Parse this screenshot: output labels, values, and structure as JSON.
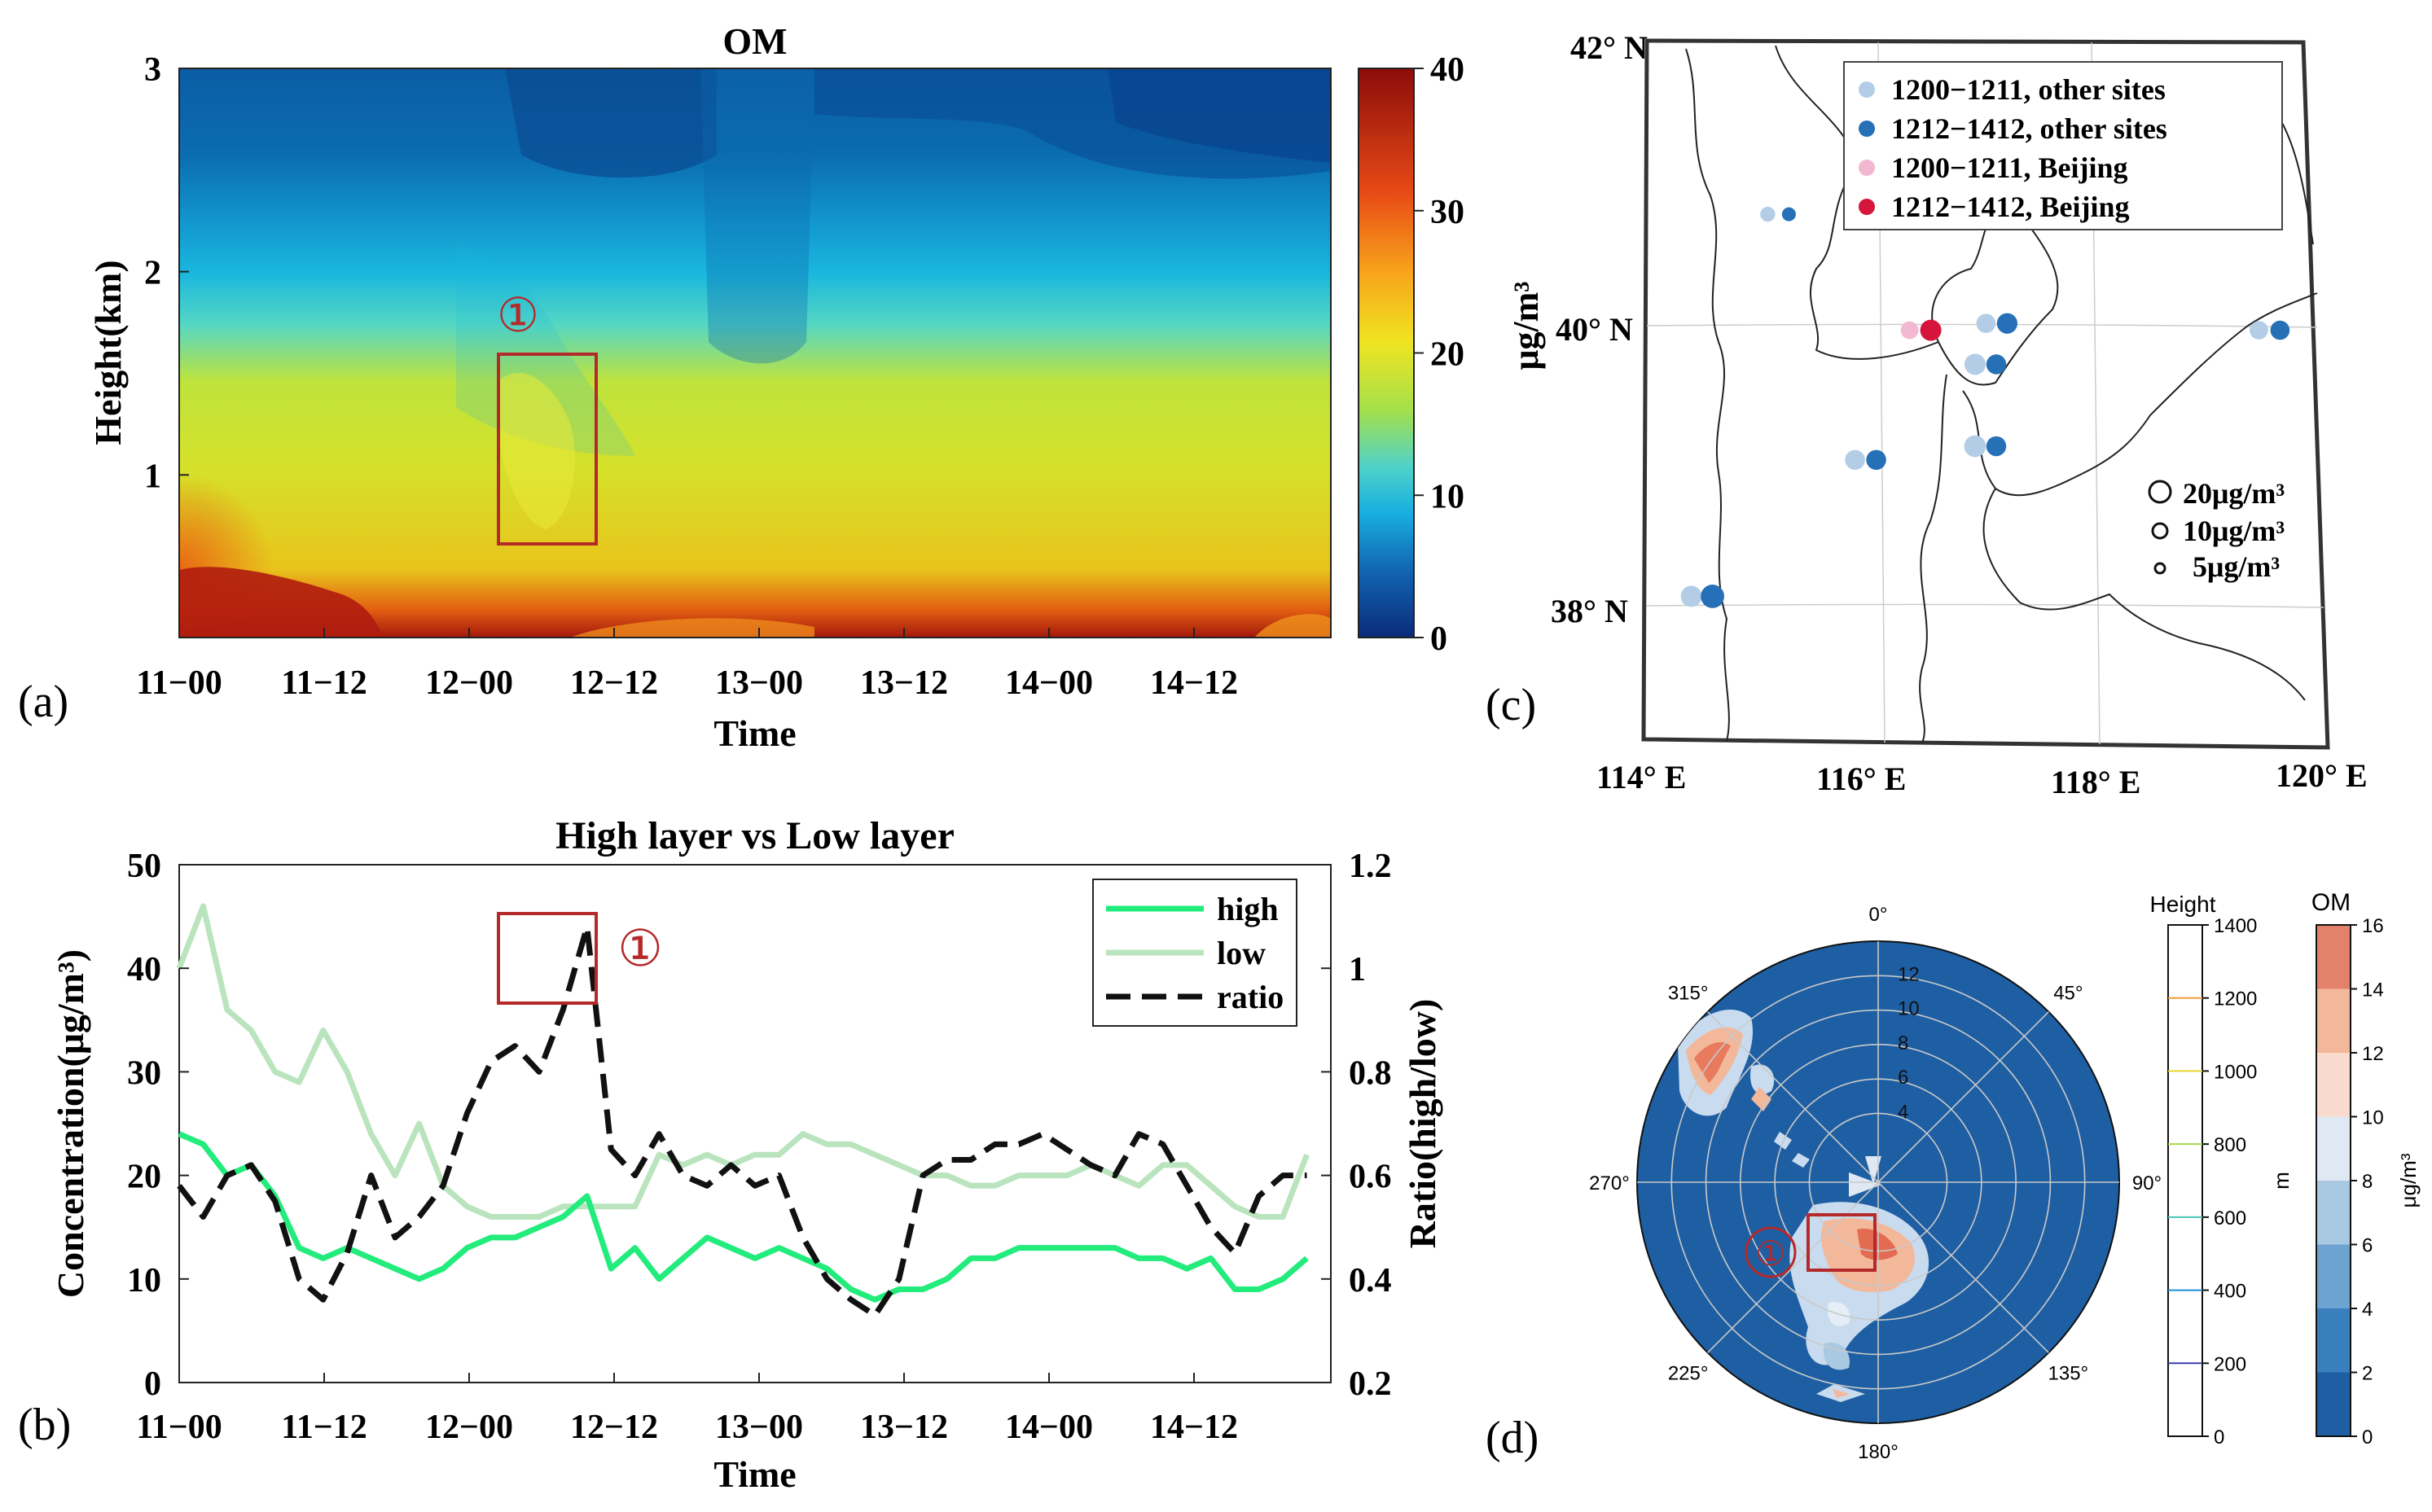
{
  "colors": {
    "high": "#21ec7c",
    "low": "#b9e4bd",
    "ratio": "#111111",
    "marker": "#b42a2a",
    "other_light": "#b3cde6",
    "other_dark": "#2670b7",
    "bj_light": "#f2b8d1",
    "bj_dark": "#d6153c",
    "polar_bg": "#1e5fa3"
  },
  "panels": {
    "a": {
      "letter": "(a)",
      "marker": "①"
    },
    "b": {
      "letter": "(b)",
      "marker": "①"
    },
    "c": {
      "letter": "(c)"
    },
    "d": {
      "letter": "(d)",
      "marker": "①"
    }
  },
  "chart_data": [
    {
      "type": "heatmap",
      "panel": "a",
      "title": "OM",
      "xlabel": "Time",
      "ylabel": "Height(km)",
      "x_ticks": [
        "11−00",
        "11−12",
        "12−00",
        "12−12",
        "13−00",
        "13−12",
        "14−00",
        "14−12"
      ],
      "y_ticks": [
        "1",
        "2",
        "3"
      ],
      "ylim": [
        0.2,
        3
      ],
      "colorbar": {
        "ticks": [
          "0",
          "10",
          "20",
          "30",
          "40"
        ],
        "range": [
          0,
          40
        ]
      },
      "z_profile_by_height": {
        "heights": [
          0.2,
          0.4,
          0.6,
          1.0,
          1.3,
          1.5,
          1.7,
          1.9,
          2.2,
          2.6,
          3.0
        ],
        "typical": [
          28,
          19,
          17,
          15,
          14,
          12,
          9,
          6,
          4,
          3,
          2
        ]
      }
    },
    {
      "type": "line",
      "panel": "b",
      "title": "High layer vs Low layer",
      "xlabel": "Time",
      "ylabel": "Concentration(μg/m³)",
      "y2label": "Ratio(high/low)",
      "x_ticks": [
        "11−00",
        "11−12",
        "12−00",
        "12−12",
        "13−00",
        "13−12",
        "14−00",
        "14−12"
      ],
      "y_ticks": [
        "0",
        "10",
        "20",
        "30",
        "40",
        "50"
      ],
      "y2_ticks": [
        "0.2",
        "0.4",
        "0.6",
        "0.8",
        "1",
        "1.2"
      ],
      "ylim": [
        0,
        50
      ],
      "y2lim": [
        0.2,
        1.2
      ],
      "legend": [
        "high",
        "low",
        "ratio"
      ],
      "legend_position": "top-right",
      "x_hours": [
        0,
        2,
        4,
        6,
        8,
        10,
        12,
        14,
        16,
        18,
        20,
        22,
        24,
        26,
        28,
        30,
        32,
        34,
        36,
        38,
        40,
        42,
        44,
        46,
        48,
        50,
        52,
        54,
        56,
        58,
        60,
        62,
        64,
        66,
        68,
        70,
        72,
        74,
        76,
        78,
        80,
        82,
        84,
        86,
        88,
        90,
        92,
        94
      ],
      "series": [
        {
          "name": "high",
          "values": [
            24,
            23,
            20,
            21,
            18,
            13,
            12,
            13,
            12,
            11,
            10,
            11,
            13,
            14,
            14,
            15,
            16,
            18,
            11,
            13,
            10,
            12,
            14,
            13,
            12,
            13,
            12,
            11,
            9,
            8,
            9,
            9,
            10,
            12,
            12,
            13,
            13,
            13,
            13,
            13,
            12,
            12,
            11,
            12,
            9,
            9,
            10,
            12
          ]
        },
        {
          "name": "low",
          "values": [
            40,
            46,
            36,
            34,
            30,
            29,
            34,
            30,
            24,
            20,
            25,
            19,
            17,
            16,
            16,
            16,
            17,
            17,
            17,
            17,
            22,
            21,
            22,
            21,
            22,
            22,
            24,
            23,
            23,
            22,
            21,
            20,
            20,
            19,
            19,
            20,
            20,
            20,
            21,
            20,
            19,
            21,
            21,
            19,
            17,
            16,
            16,
            22
          ]
        },
        {
          "name": "ratio",
          "values": [
            0.58,
            0.52,
            0.6,
            0.62,
            0.55,
            0.4,
            0.36,
            0.45,
            0.6,
            0.48,
            0.52,
            0.58,
            0.72,
            0.82,
            0.85,
            0.8,
            0.92,
            1.08,
            0.65,
            0.6,
            0.68,
            0.6,
            0.58,
            0.62,
            0.58,
            0.6,
            0.48,
            0.4,
            0.36,
            0.33,
            0.4,
            0.6,
            0.63,
            0.63,
            0.66,
            0.66,
            0.68,
            0.65,
            0.62,
            0.6,
            0.68,
            0.66,
            0.58,
            0.5,
            0.45,
            0.56,
            0.6,
            0.6
          ]
        }
      ]
    },
    {
      "type": "scatter",
      "panel": "c",
      "ylabel": "μg/m³",
      "lon_ticks": [
        "114° E",
        "116° E",
        "118° E",
        "120° E"
      ],
      "lat_ticks": [
        "38° N",
        "40° N",
        "42° N"
      ],
      "lon_range": [
        114,
        120
      ],
      "lat_range": [
        37,
        42
      ],
      "legend": [
        {
          "label": "1200−1211, other sites",
          "color": "#b3cde6"
        },
        {
          "label": "1212−1412, other sites",
          "color": "#2670b7"
        },
        {
          "label": "1200−1211, Beijing",
          "color": "#f2b8d1"
        },
        {
          "label": "1212−1412, Beijing",
          "color": "#d6153c"
        }
      ],
      "size_legend": [
        "20μg/m³",
        "10μg/m³",
        "5μg/m³"
      ],
      "sites": [
        {
          "lon": 115.1,
          "lat": 40.8,
          "v1": 4,
          "v2": 3
        },
        {
          "lon": 116.4,
          "lat": 39.95,
          "v1": 7,
          "v2": 12,
          "beijing": true
        },
        {
          "lon": 117.1,
          "lat": 40.0,
          "v1": 9,
          "v2": 11
        },
        {
          "lon": 117.0,
          "lat": 39.7,
          "v1": 12,
          "v2": 10
        },
        {
          "lon": 119.6,
          "lat": 39.95,
          "v1": 8,
          "v2": 9
        },
        {
          "lon": 115.9,
          "lat": 39.0,
          "v1": 10,
          "v2": 10
        },
        {
          "lon": 117.0,
          "lat": 39.1,
          "v1": 13,
          "v2": 10
        },
        {
          "lon": 114.4,
          "lat": 38.0,
          "v1": 12,
          "v2": 16
        }
      ]
    },
    {
      "type": "polar-contour",
      "panel": "d",
      "angle_ticks": [
        "0°",
        "45°",
        "90°",
        "135°",
        "180°",
        "225°",
        "270°",
        "315°"
      ],
      "radial_ticks": [
        "4",
        "6",
        "8",
        "10",
        "12"
      ],
      "colorbar_height": {
        "title": "Height",
        "unit": "m",
        "ticks": [
          "0",
          "200",
          "400",
          "600",
          "800",
          "1000",
          "1200",
          "1400"
        ]
      },
      "colorbar_om": {
        "title": "OM",
        "unit": "μg/m³",
        "ticks": [
          "0",
          "2",
          "4",
          "6",
          "8",
          "10",
          "12",
          "14",
          "16"
        ]
      }
    }
  ]
}
